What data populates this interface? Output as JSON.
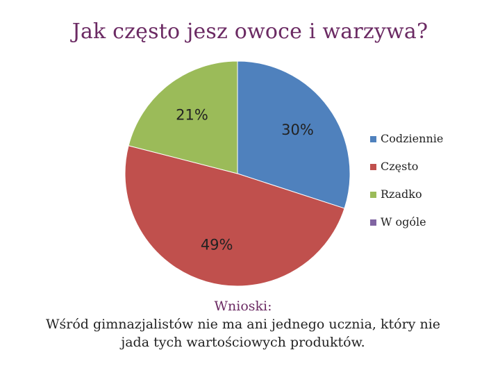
{
  "title": "Jak często jesz owoce i warzywa?",
  "chart_data": {
    "type": "pie",
    "title": "Jak często jesz owoce i warzywa?",
    "slices": [
      {
        "name": "Codziennie",
        "value": 30,
        "label": "30%",
        "color": "#4f81bd"
      },
      {
        "name": "Często",
        "value": 49,
        "label": "49%",
        "color": "#c0504d"
      },
      {
        "name": "Rzadko",
        "value": 21,
        "label": "21%",
        "color": "#9bbb59"
      },
      {
        "name": "W ogóle",
        "value": 0,
        "label": "",
        "color": "#8064a2"
      }
    ],
    "legend_position": "right"
  },
  "conclusion": {
    "heading": "Wnioski:",
    "line1": "Wśród gimnazjalistów nie ma ani jednego ucznia, który nie",
    "line2": "jada tych wartościowych produktów."
  }
}
